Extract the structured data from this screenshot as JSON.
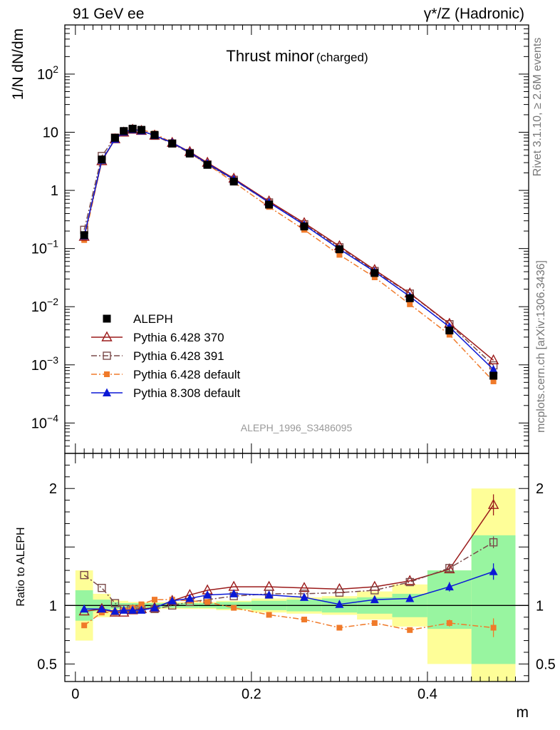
{
  "header": {
    "left": "91 GeV ee",
    "right": "γ*/Z (Hadronic)"
  },
  "side": {
    "rivet": "Rivet 3.1.10, ≥ 2.6M events",
    "mcplots": "mcplots.cern.ch [arXiv:1306.3436]"
  },
  "chart_data": [
    {
      "panel": "main",
      "type": "scatter",
      "title": "Thrust minor",
      "title_suffix": "(charged)",
      "ylabel": "1/N dN/dm",
      "analysis_label": "ALEPH_1996_S3486095",
      "yscale": "log",
      "ylim": [
        3e-05,
        700
      ],
      "xlim": [
        -0.012,
        0.515
      ],
      "y_ticks": [
        {
          "value": 0.0001,
          "base": "10",
          "exp": "−4"
        },
        {
          "value": 0.001,
          "base": "10",
          "exp": "−3"
        },
        {
          "value": 0.01,
          "base": "10",
          "exp": "−2"
        },
        {
          "value": 0.1,
          "base": "10",
          "exp": "−1"
        },
        {
          "value": 1,
          "base": "1",
          "exp": ""
        },
        {
          "value": 10,
          "base": "10",
          "exp": ""
        },
        {
          "value": 100,
          "base": "10",
          "exp": "2"
        }
      ],
      "legend_position": "lower-left",
      "x": [
        0.01,
        0.03,
        0.045,
        0.055,
        0.065,
        0.075,
        0.09,
        0.11,
        0.13,
        0.15,
        0.18,
        0.22,
        0.26,
        0.3,
        0.34,
        0.38,
        0.425,
        0.475
      ],
      "series": [
        {
          "name": "ALEPH",
          "color": "#000000",
          "marker": "filled-square",
          "line": "none",
          "values": [
            0.17,
            3.4,
            8.0,
            10.5,
            11.5,
            11.0,
            9.0,
            6.4,
            4.3,
            2.75,
            1.42,
            0.57,
            0.24,
            0.097,
            0.038,
            0.014,
            0.0039,
            0.00065
          ]
        },
        {
          "name": "Pythia 6.428 370",
          "color": "#9b1b1b",
          "marker": "open-triangle",
          "line": "solid",
          "values": [
            0.16,
            3.2,
            7.6,
            9.9,
            11.1,
            10.6,
            8.8,
            6.6,
            4.6,
            3.0,
            1.6,
            0.65,
            0.275,
            0.11,
            0.043,
            0.017,
            0.0051,
            0.0012
          ]
        },
        {
          "name": "Pythia 6.428 391",
          "color": "#7a4a4a",
          "marker": "open-square",
          "line": "dashdot",
          "values": [
            0.21,
            3.9,
            8.1,
            10.2,
            11.2,
            10.7,
            8.7,
            6.4,
            4.4,
            2.8,
            1.52,
            0.62,
            0.262,
            0.105,
            0.041,
            0.0168,
            0.005,
            0.00098
          ]
        },
        {
          "name": "Pythia 6.428 default",
          "color": "#f07a2a",
          "marker": "filled-square-small",
          "line": "dashdot",
          "values": [
            0.14,
            3.2,
            7.5,
            10.1,
            11.2,
            11.1,
            9.5,
            6.6,
            4.4,
            2.8,
            1.38,
            0.52,
            0.21,
            0.078,
            0.032,
            0.011,
            0.0033,
            0.00052
          ]
        },
        {
          "name": "Pythia 8.308 default",
          "color": "#0b19d6",
          "marker": "filled-triangle",
          "line": "solid",
          "values": [
            0.165,
            3.3,
            7.6,
            10.1,
            11.1,
            10.6,
            8.8,
            6.6,
            4.5,
            2.9,
            1.55,
            0.62,
            0.255,
            0.098,
            0.04,
            0.015,
            0.0045,
            0.00083
          ]
        }
      ]
    },
    {
      "panel": "ratio",
      "type": "scatter",
      "ylabel": "Ratio to ALEPH",
      "xlabel": "m",
      "ylim": [
        0.35,
        2.3
      ],
      "xlim": [
        -0.012,
        0.515
      ],
      "y_ticks": [
        {
          "value": 0.5,
          "label": "0.5"
        },
        {
          "value": 1,
          "label": "1"
        },
        {
          "value": 2,
          "label": "2"
        }
      ],
      "x_ticks": [
        {
          "value": 0,
          "label": "0"
        },
        {
          "value": 0.2,
          "label": "0.2"
        },
        {
          "value": 0.4,
          "label": "0.4"
        }
      ],
      "bands": [
        {
          "x0": 0.0,
          "x1": 0.02,
          "stat": [
            0.87,
            1.13
          ],
          "total": [
            0.7,
            1.3
          ]
        },
        {
          "x0": 0.02,
          "x1": 0.04,
          "stat": [
            0.95,
            1.05
          ],
          "total": [
            0.9,
            1.1
          ]
        },
        {
          "x0": 0.04,
          "x1": 0.05,
          "stat": [
            0.97,
            1.03
          ],
          "total": [
            0.95,
            1.05
          ]
        },
        {
          "x0": 0.05,
          "x1": 0.06,
          "stat": [
            0.98,
            1.02
          ],
          "total": [
            0.96,
            1.04
          ]
        },
        {
          "x0": 0.06,
          "x1": 0.07,
          "stat": [
            0.98,
            1.02
          ],
          "total": [
            0.97,
            1.03
          ]
        },
        {
          "x0": 0.07,
          "x1": 0.08,
          "stat": [
            0.98,
            1.02
          ],
          "total": [
            0.97,
            1.03
          ]
        },
        {
          "x0": 0.08,
          "x1": 0.1,
          "stat": [
            0.98,
            1.02
          ],
          "total": [
            0.97,
            1.03
          ]
        },
        {
          "x0": 0.1,
          "x1": 0.12,
          "stat": [
            0.98,
            1.02
          ],
          "total": [
            0.97,
            1.03
          ]
        },
        {
          "x0": 0.12,
          "x1": 0.14,
          "stat": [
            0.98,
            1.02
          ],
          "total": [
            0.97,
            1.03
          ]
        },
        {
          "x0": 0.14,
          "x1": 0.16,
          "stat": [
            0.98,
            1.02
          ],
          "total": [
            0.97,
            1.03
          ]
        },
        {
          "x0": 0.16,
          "x1": 0.2,
          "stat": [
            0.97,
            1.03
          ],
          "total": [
            0.96,
            1.04
          ]
        },
        {
          "x0": 0.2,
          "x1": 0.24,
          "stat": [
            0.96,
            1.04
          ],
          "total": [
            0.94,
            1.06
          ]
        },
        {
          "x0": 0.24,
          "x1": 0.28,
          "stat": [
            0.95,
            1.05
          ],
          "total": [
            0.93,
            1.07
          ]
        },
        {
          "x0": 0.28,
          "x1": 0.32,
          "stat": [
            0.94,
            1.06
          ],
          "total": [
            0.92,
            1.08
          ]
        },
        {
          "x0": 0.32,
          "x1": 0.36,
          "stat": [
            0.93,
            1.07
          ],
          "total": [
            0.88,
            1.12
          ]
        },
        {
          "x0": 0.36,
          "x1": 0.4,
          "stat": [
            0.9,
            1.1
          ],
          "total": [
            0.82,
            1.18
          ]
        },
        {
          "x0": 0.4,
          "x1": 0.45,
          "stat": [
            0.8,
            1.3
          ],
          "total": [
            0.5,
            1.3
          ]
        },
        {
          "x0": 0.45,
          "x1": 0.5,
          "stat": [
            0.5,
            1.6
          ],
          "total": [
            0.35,
            2.0
          ]
        }
      ],
      "series": [
        {
          "name": "Pythia 6.428 370",
          "color": "#9b1b1b",
          "marker": "open-triangle",
          "line": "solid",
          "values": [
            0.95,
            0.97,
            0.94,
            0.94,
            0.96,
            0.97,
            0.98,
            1.04,
            1.09,
            1.13,
            1.16,
            1.16,
            1.15,
            1.14,
            1.16,
            1.21,
            1.31,
            1.86
          ],
          "errors": [
            0,
            0,
            0,
            0,
            0,
            0,
            0,
            0,
            0,
            0,
            0,
            0,
            0,
            0,
            0,
            0,
            0.02,
            0.09
          ]
        },
        {
          "name": "Pythia 6.428 391",
          "color": "#7a4a4a",
          "marker": "open-square",
          "line": "dashdot",
          "values": [
            1.26,
            1.15,
            1.02,
            0.97,
            0.97,
            0.97,
            0.97,
            1.0,
            1.03,
            1.05,
            1.08,
            1.1,
            1.1,
            1.11,
            1.13,
            1.2,
            1.32,
            1.54
          ],
          "errors": [
            0,
            0,
            0,
            0,
            0,
            0,
            0,
            0,
            0,
            0,
            0,
            0,
            0,
            0,
            0,
            0,
            0.03,
            0.05
          ]
        },
        {
          "name": "Pythia 6.428 default",
          "color": "#f07a2a",
          "marker": "filled-square-small",
          "line": "dashdot",
          "values": [
            0.83,
            0.94,
            0.94,
            0.96,
            0.98,
            1.01,
            1.05,
            1.05,
            1.04,
            1.03,
            0.98,
            0.92,
            0.88,
            0.81,
            0.85,
            0.79,
            0.85,
            0.81
          ],
          "errors": [
            0,
            0,
            0,
            0,
            0,
            0,
            0,
            0,
            0,
            0,
            0,
            0,
            0,
            0,
            0,
            0.02,
            0.03,
            0.08
          ]
        },
        {
          "name": "Pythia 8.308 default",
          "color": "#0b19d6",
          "marker": "filled-triangle",
          "line": "solid",
          "values": [
            0.97,
            0.97,
            0.95,
            0.96,
            0.96,
            0.96,
            0.98,
            1.04,
            1.06,
            1.09,
            1.1,
            1.09,
            1.07,
            1.01,
            1.05,
            1.06,
            1.16,
            1.29
          ],
          "errors": [
            0,
            0,
            0,
            0,
            0,
            0,
            0,
            0,
            0,
            0,
            0,
            0,
            0,
            0,
            0,
            0.01,
            0.04,
            0.07
          ]
        }
      ],
      "colors": {
        "stat_band": "#98f5a0",
        "total_band": "#fefe98",
        "reference_line": "#000000"
      }
    }
  ]
}
